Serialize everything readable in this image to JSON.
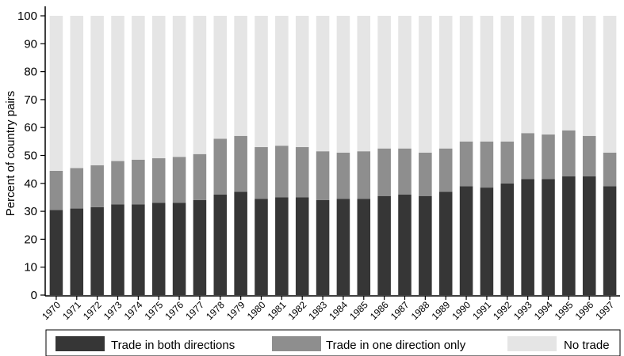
{
  "chart_data": {
    "type": "bar",
    "stacked": true,
    "ylabel": "Percent of country pairs",
    "ylim": [
      0,
      100
    ],
    "yticks": [
      0,
      10,
      20,
      30,
      40,
      50,
      60,
      70,
      80,
      90,
      100
    ],
    "grid": false,
    "legend_position": "bottom",
    "categories": [
      "1970",
      "1971",
      "1972",
      "1973",
      "1974",
      "1975",
      "1976",
      "1977",
      "1978",
      "1979",
      "1980",
      "1981",
      "1982",
      "1983",
      "1984",
      "1985",
      "1986",
      "1987",
      "1988",
      "1989",
      "1990",
      "1991",
      "1992",
      "1993",
      "1994",
      "1995",
      "1996",
      "1997"
    ],
    "series": [
      {
        "name": "Trade in both directions",
        "color": "#363636",
        "values": [
          30.5,
          31,
          31.5,
          32.5,
          32.5,
          33,
          33,
          34,
          36,
          37,
          34.5,
          35,
          35,
          34,
          34.5,
          34.5,
          35.5,
          36,
          35.5,
          37,
          39,
          38.5,
          40,
          41.5,
          41.5,
          42.5,
          42.5,
          39
        ]
      },
      {
        "name": "Trade in one direction only",
        "color": "#8e8e8e",
        "values": [
          14,
          14.5,
          15,
          15.5,
          16,
          16,
          16.5,
          16.5,
          20,
          20,
          18.5,
          18.5,
          18,
          17.5,
          16.5,
          17,
          17,
          16.5,
          15.5,
          15.5,
          16,
          16.5,
          15,
          16.5,
          16,
          16.5,
          14.5,
          12
        ]
      },
      {
        "name": "No trade",
        "color": "#e5e5e5",
        "values": [
          55.5,
          54.5,
          53.5,
          52,
          51.5,
          51,
          50.5,
          49.5,
          44,
          43,
          47,
          46.5,
          47,
          48.5,
          49,
          48.5,
          47.5,
          47.5,
          49,
          47.5,
          45,
          45,
          45,
          42,
          42.5,
          41,
          43,
          49
        ]
      }
    ]
  }
}
